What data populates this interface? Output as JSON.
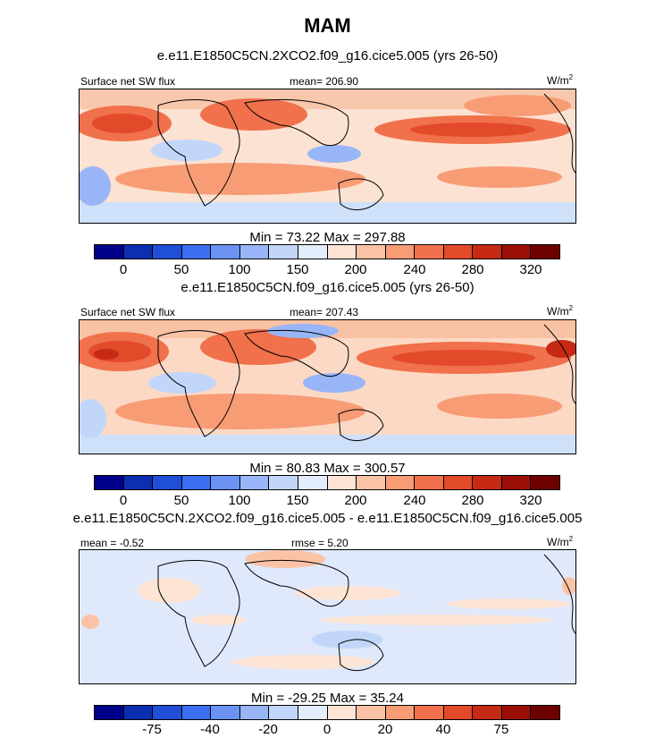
{
  "season_title": "MAM",
  "chart_data": [
    {
      "type": "heatmap",
      "title": "e.e11.E1850C5CN.2XCO2.f09_g16.cice5.005 (yrs 26-50)",
      "variable": "Surface net SW flux",
      "stat_label": "mean= 206.90",
      "units": "W/m",
      "units_sup": "2",
      "min_max": "Min =  73.22 Max = 297.88",
      "min": 73.22,
      "max": 297.88,
      "mean": 206.9,
      "colorbar_ticks": [
        "0",
        "50",
        "100",
        "150",
        "200",
        "240",
        "280",
        "320"
      ],
      "colorbar_colors": [
        "#00008b",
        "#0b2fb0",
        "#1f4fd6",
        "#3b6ef0",
        "#6a93f4",
        "#98b6f7",
        "#c2d6fa",
        "#e3ecfb",
        "#fde4d4",
        "#fbc3a6",
        "#f79c75",
        "#f0714b",
        "#e34a2a",
        "#c62a14",
        "#9b1006",
        "#6e0000"
      ]
    },
    {
      "type": "heatmap",
      "title": "e.e11.E1850C5CN.f09_g16.cice5.005 (yrs 26-50)",
      "variable": "Surface net SW flux",
      "stat_label": "mean= 207.43",
      "units": "W/m",
      "units_sup": "2",
      "min_max": "Min =  80.83 Max = 300.57",
      "min": 80.83,
      "max": 300.57,
      "mean": 207.43,
      "colorbar_ticks": [
        "0",
        "50",
        "100",
        "150",
        "200",
        "240",
        "280",
        "320"
      ],
      "colorbar_colors": [
        "#00008b",
        "#0b2fb0",
        "#1f4fd6",
        "#3b6ef0",
        "#6a93f4",
        "#98b6f7",
        "#c2d6fa",
        "#e3ecfb",
        "#fde4d4",
        "#fbc3a6",
        "#f79c75",
        "#f0714b",
        "#e34a2a",
        "#c62a14",
        "#9b1006",
        "#6e0000"
      ]
    },
    {
      "type": "heatmap",
      "title": "e.e11.E1850C5CN.2XCO2.f09_g16.cice5.005 - e.e11.E1850C5CN.f09_g16.cice5.005",
      "variable": "mean =  -0.52",
      "stat_label": "rmse =   5.20",
      "units": "W/m",
      "units_sup": "2",
      "min_max": "Min = -29.25 Max =  35.24",
      "min": -29.25,
      "max": 35.24,
      "mean": -0.52,
      "rmse": 5.2,
      "colorbar_ticks": [
        "-75",
        "-40",
        "-20",
        "0",
        "20",
        "40",
        "75"
      ],
      "colorbar_colors": [
        "#00008b",
        "#0b2fb0",
        "#1f4fd6",
        "#3b6ef0",
        "#6a93f4",
        "#98b6f7",
        "#c2d6fa",
        "#e3ecfb",
        "#fde4d4",
        "#fbc3a6",
        "#f79c75",
        "#f0714b",
        "#e34a2a",
        "#c62a14",
        "#9b1006",
        "#6e0000"
      ]
    }
  ]
}
